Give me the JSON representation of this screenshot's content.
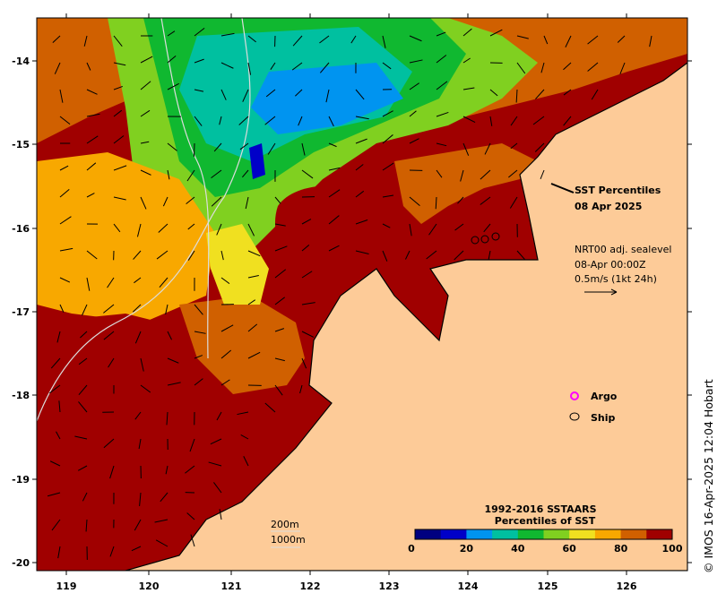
{
  "title": {
    "line1": "SST Percentiles",
    "line2": "08 Apr 2025"
  },
  "velocity_note": {
    "line1": "NRT00 adj. sealevel",
    "line2": "08-Apr 00:00Z",
    "line3": "0.5m/s (1kt 24h)"
  },
  "legend": {
    "argo": "Argo",
    "ship": "Ship",
    "argo_color": "#ff00ff",
    "ship_color": "#000000"
  },
  "colorbar": {
    "title1": "1992-2016 SSTAARS",
    "title2": "Percentiles of SST",
    "colors": [
      "#000080",
      "#0000c8",
      "#0094f0",
      "#00c0a0",
      "#10b830",
      "#80d020",
      "#f0e020",
      "#f8a800",
      "#d06000",
      "#a00000"
    ],
    "ticks": [
      "0",
      "20",
      "40",
      "60",
      "80",
      "100"
    ]
  },
  "scale": {
    "depth1": "200m",
    "depth2": "1000m"
  },
  "axes": {
    "lon_ticks": [
      "119",
      "120",
      "121",
      "122",
      "123",
      "124",
      "125",
      "126"
    ],
    "lat_ticks": [
      "-14",
      "-15",
      "-16",
      "-17",
      "-18",
      "-19",
      "-20"
    ]
  },
  "land_color": "#fdcb98",
  "credit": "© IMOS 16-Apr-2025 12:04 Hobart"
}
